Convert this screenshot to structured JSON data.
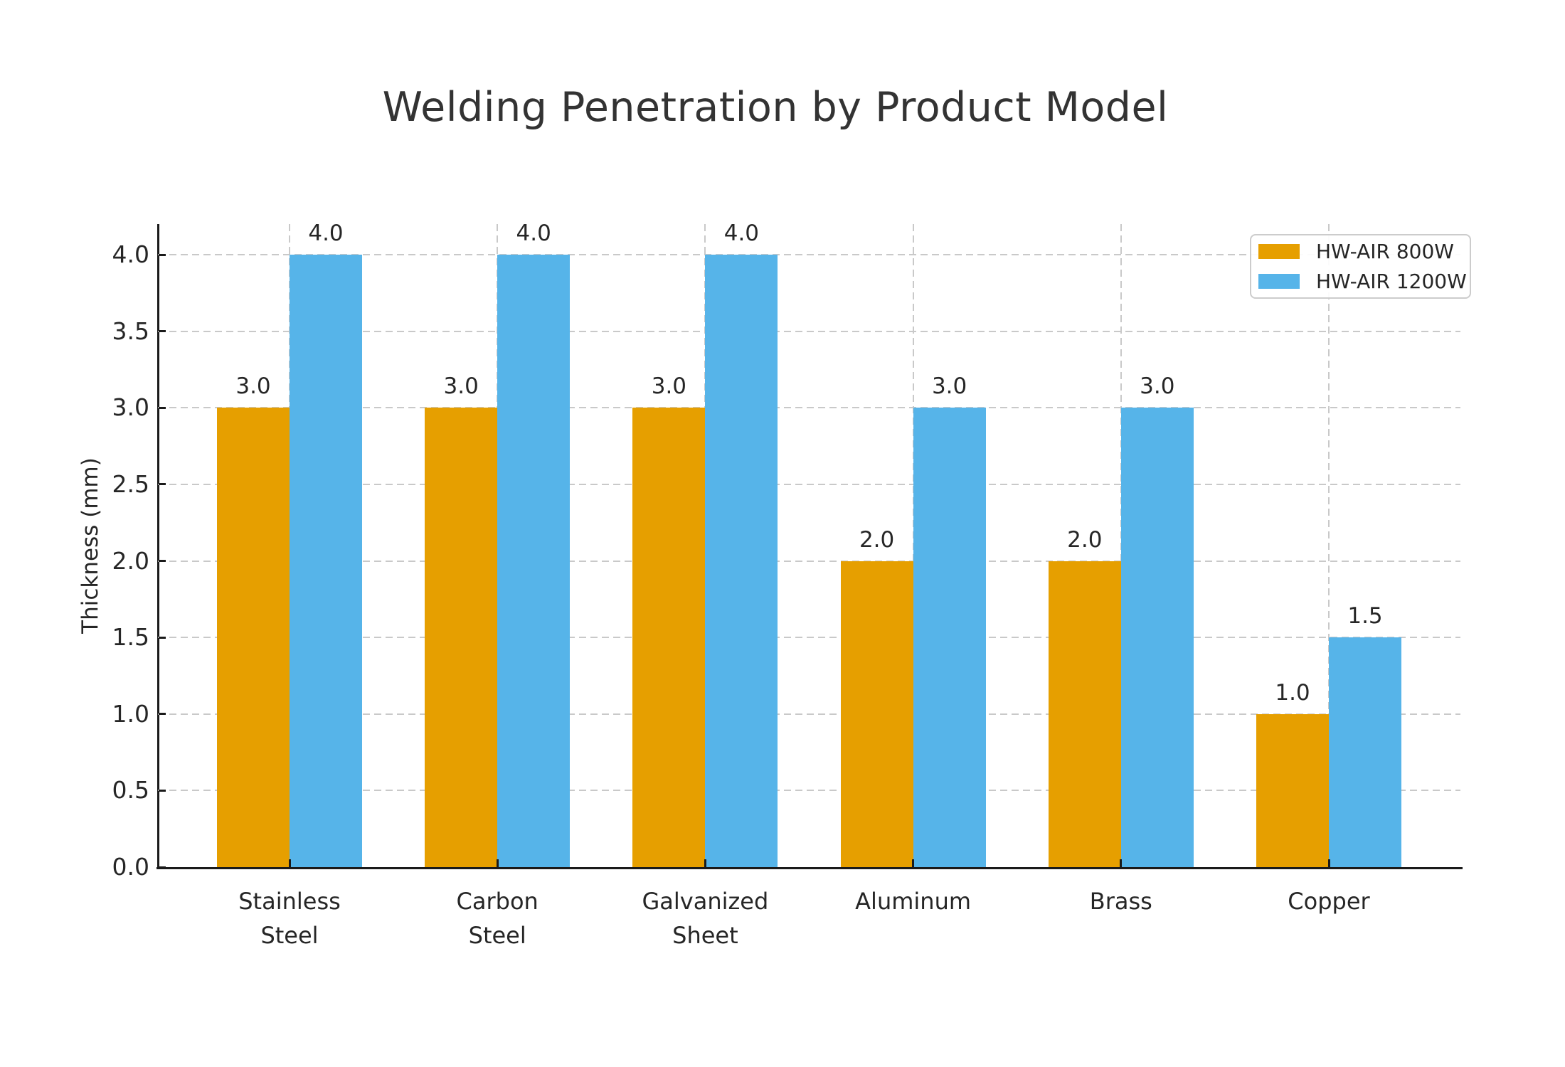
{
  "chart_data": {
    "type": "bar",
    "title": "Welding Penetration by Product Model",
    "xlabel": "",
    "ylabel": "Thickness (mm)",
    "categories": [
      "Stainless\nSteel",
      "Carbon\nSteel",
      "Galvanized\nSheet",
      "Aluminum",
      "Brass",
      "Copper"
    ],
    "series": [
      {
        "name": "HW-AIR 800W",
        "color": "#E69F00",
        "values": [
          3.0,
          3.0,
          3.0,
          2.0,
          2.0,
          1.0
        ],
        "value_labels": [
          "3.0",
          "3.0",
          "3.0",
          "2.0",
          "2.0",
          "1.0"
        ]
      },
      {
        "name": "HW-AIR 1200W",
        "color": "#56B4E9",
        "values": [
          4.0,
          4.0,
          4.0,
          3.0,
          3.0,
          1.5
        ],
        "value_labels": [
          "4.0",
          "4.0",
          "4.0",
          "3.0",
          "3.0",
          "1.5"
        ]
      }
    ],
    "ylim": [
      0,
      4.2
    ],
    "yticks": [
      "0.0",
      "0.5",
      "1.0",
      "1.5",
      "2.0",
      "2.5",
      "3.0",
      "3.5",
      "4.0"
    ],
    "grid": "dashed-both-axes",
    "legend_position": "upper right"
  }
}
